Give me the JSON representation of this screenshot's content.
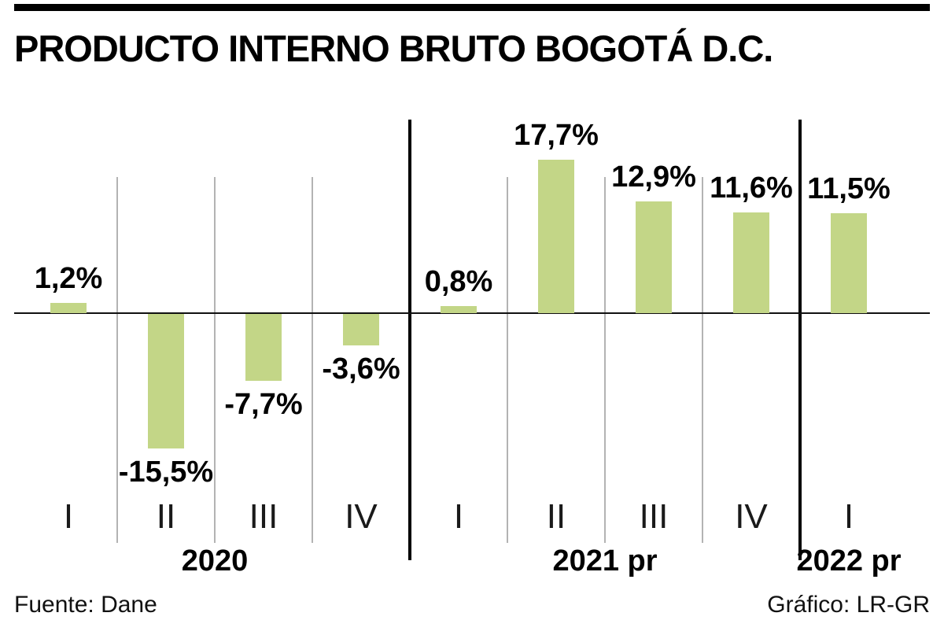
{
  "chart_data": {
    "type": "bar",
    "title": "PRODUCTO INTERNO BRUTO BOGOTÁ D.C.",
    "unit": "%",
    "bar_color": "#c3d687",
    "ylim": [
      -18,
      20
    ],
    "grid": "vertical separators between quarters, heavy separators between years, horizontal zero axis",
    "legend": "none",
    "groups": [
      {
        "year": "2020",
        "quarters": [
          "I",
          "II",
          "III",
          "IV"
        ],
        "values": [
          1.2,
          -15.5,
          -7.7,
          -3.6
        ],
        "labels": [
          "1,2%",
          "-15,5%",
          "-7,7%",
          "-3,6%"
        ]
      },
      {
        "year": "2021 pr",
        "quarters": [
          "I",
          "II",
          "III",
          "IV"
        ],
        "values": [
          0.8,
          17.7,
          12.9,
          11.6
        ],
        "labels": [
          "0,8%",
          "17,7%",
          "12,9%",
          "11,6%"
        ]
      },
      {
        "year": "2022 pr",
        "quarters": [
          "I"
        ],
        "values": [
          11.5
        ],
        "labels": [
          "11,5%"
        ]
      }
    ],
    "source": "Fuente: Dane",
    "credit": "Gráfico: LR-GR"
  }
}
